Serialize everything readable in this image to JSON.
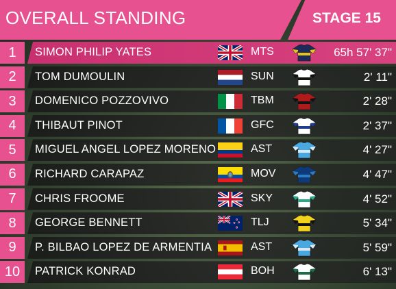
{
  "header": {
    "title": "OVERALL STANDING",
    "stage": "STAGE 15"
  },
  "colors": {
    "accent": "#e8518f",
    "row_bg": "#232323"
  },
  "standings": [
    {
      "pos": "1",
      "name": "SIMON PHILIP YATES",
      "flag": "gb",
      "team": "MTS",
      "time": "65h 57' 37\"",
      "jersey": [
        "#1c2b5a",
        "#e8c21a"
      ]
    },
    {
      "pos": "2",
      "name": "TOM DUMOULIN",
      "flag": "nl",
      "team": "SUN",
      "time": "2' 11\"",
      "jersey": [
        "#ffffff",
        "#111111"
      ]
    },
    {
      "pos": "3",
      "name": "DOMENICO POZZOVIVO",
      "flag": "it",
      "team": "TBM",
      "time": "2' 28\"",
      "jersey": [
        "#b01a1a",
        "#111111"
      ]
    },
    {
      "pos": "4",
      "name": "THIBAUT PINOT",
      "flag": "fr",
      "team": "GFC",
      "time": "2' 37\"",
      "jersey": [
        "#ffffff",
        "#1e3c8a"
      ]
    },
    {
      "pos": "5",
      "name": "MIGUEL ANGEL LOPEZ MORENO",
      "flag": "co",
      "team": "AST",
      "time": "4' 27\"",
      "jersey": [
        "#49a8e0",
        "#d8e8f0"
      ]
    },
    {
      "pos": "6",
      "name": "RICHARD CARAPAZ",
      "flag": "ec",
      "team": "MOV",
      "time": "4' 47\"",
      "jersey": [
        "#0f3a7a",
        "#2a7cc7"
      ]
    },
    {
      "pos": "7",
      "name": "CHRIS FROOME",
      "flag": "gb",
      "team": "SKY",
      "time": "4' 52\"",
      "jersey": [
        "#ffffff",
        "#2aa88a"
      ]
    },
    {
      "pos": "8",
      "name": "GEORGE BENNETT",
      "flag": "nz",
      "team": "TLJ",
      "time": "5' 34\"",
      "jersey": [
        "#f2d21a",
        "#111111"
      ]
    },
    {
      "pos": "9",
      "name": "P. BILBAO LOPEZ DE ARMENTIA",
      "flag": "es",
      "team": "AST",
      "time": "5' 59\"",
      "jersey": [
        "#49a8e0",
        "#d8e8f0"
      ]
    },
    {
      "pos": "10",
      "name": "PATRICK KONRAD",
      "flag": "at",
      "team": "BOH",
      "time": "6' 13\"",
      "jersey": [
        "#ffffff",
        "#1e6b4a"
      ]
    }
  ]
}
